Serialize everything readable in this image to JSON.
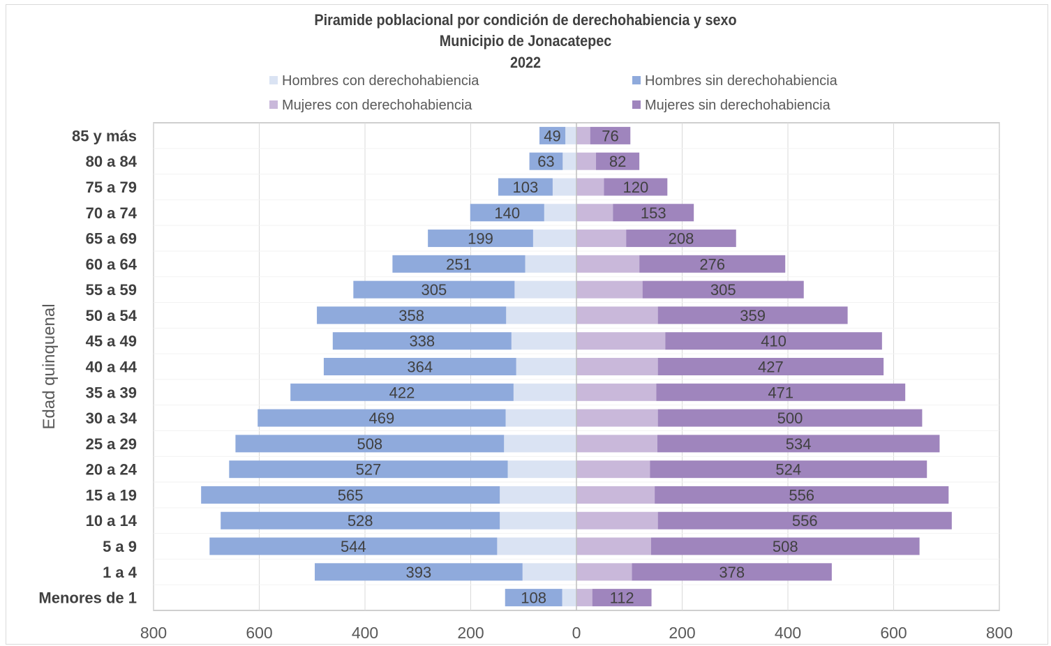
{
  "chart_data": {
    "type": "bar",
    "orientation": "horizontal-population-pyramid",
    "title": "Piramide poblacional por condición de derechohabiencia  y sexo",
    "subtitle": "Municipio de Jonacatepec",
    "year": "2022",
    "ylabel": "Edad quinquenal",
    "xlim": [
      -800,
      800
    ],
    "x_ticks": [
      "800",
      "600",
      "400",
      "200",
      "0",
      "200",
      "400",
      "600",
      "800"
    ],
    "legend_position": "top",
    "categories": [
      "85 y más",
      "80 a 84",
      "75 a 79",
      "70 a 74",
      "65 a 69",
      "60 a 64",
      "55 a 59",
      "50 a 54",
      "45 a 49",
      "40 a 44",
      "35 a 39",
      "30 a 34",
      "25 a 29",
      "20 a 24",
      "15 a 19",
      "10 a 14",
      "5 a 9",
      "1 a 4",
      "Menores de 1"
    ],
    "series": [
      {
        "name": "Hombres con derechohabiencia",
        "side": "left",
        "color": "#dae3f3",
        "values": [
          21,
          26,
          45,
          61,
          82,
          97,
          117,
          133,
          123,
          114,
          119,
          134,
          137,
          130,
          145,
          145,
          150,
          102,
          27
        ]
      },
      {
        "name": "Hombres sin derechohabiencia",
        "side": "left",
        "color": "#8faadc",
        "values": [
          49,
          63,
          103,
          140,
          199,
          251,
          305,
          358,
          338,
          364,
          422,
          469,
          508,
          527,
          565,
          528,
          544,
          393,
          108
        ]
      },
      {
        "name": "Mujeres con derechohabiencia",
        "side": "right",
        "color": "#c9b8da",
        "values": [
          26,
          37,
          52,
          69,
          94,
          119,
          125,
          154,
          168,
          154,
          151,
          154,
          153,
          139,
          148,
          154,
          141,
          105,
          30
        ]
      },
      {
        "name": "Mujeres sin derechohabiencia",
        "side": "right",
        "color": "#9f85bd",
        "values": [
          76,
          82,
          120,
          153,
          208,
          276,
          305,
          359,
          410,
          427,
          471,
          500,
          534,
          524,
          556,
          556,
          508,
          378,
          112
        ]
      }
    ],
    "grid": "vertical"
  }
}
